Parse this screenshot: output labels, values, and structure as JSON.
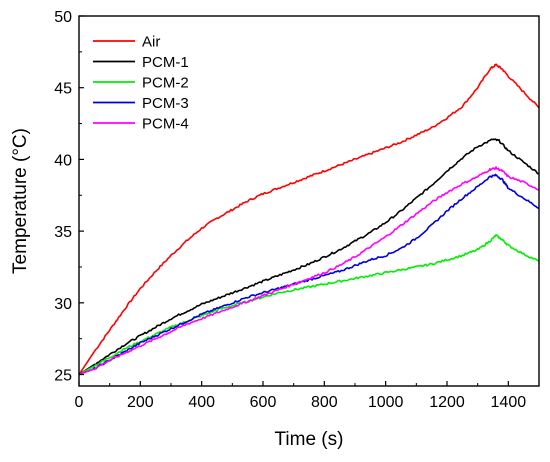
{
  "chart_data": {
    "type": "line",
    "title": "",
    "xlabel": "Time (s)",
    "ylabel": "Temperature (°C)",
    "xlim": [
      0,
      1500
    ],
    "ylim": [
      24.2,
      50
    ],
    "xticks": [
      0,
      200,
      400,
      600,
      800,
      1000,
      1200,
      1400
    ],
    "yticks": [
      25,
      30,
      35,
      40,
      45,
      50
    ],
    "grid": false,
    "legend_position": "top-left",
    "series": [
      {
        "name": "Air",
        "color": "#ff0000",
        "x": [
          0,
          50,
          100,
          150,
          200,
          250,
          300,
          350,
          400,
          450,
          500,
          550,
          600,
          650,
          700,
          750,
          800,
          850,
          900,
          950,
          1000,
          1050,
          1100,
          1150,
          1200,
          1250,
          1300,
          1340,
          1360,
          1380,
          1400,
          1450,
          1500
        ],
        "y": [
          25.0,
          26.6,
          28.1,
          29.6,
          31.0,
          32.2,
          33.3,
          34.3,
          35.2,
          35.9,
          36.5,
          37.1,
          37.6,
          38.0,
          38.4,
          38.8,
          39.2,
          39.6,
          40.0,
          40.4,
          40.8,
          41.2,
          41.7,
          42.2,
          42.9,
          43.7,
          45.0,
          46.3,
          46.6,
          46.3,
          45.8,
          44.7,
          43.6
        ]
      },
      {
        "name": "PCM-1",
        "color": "#000000",
        "x": [
          0,
          50,
          100,
          150,
          200,
          250,
          300,
          350,
          400,
          450,
          500,
          550,
          600,
          650,
          700,
          750,
          800,
          850,
          900,
          950,
          1000,
          1050,
          1100,
          1150,
          1200,
          1250,
          1300,
          1350,
          1370,
          1400,
          1450,
          1500
        ],
        "y": [
          25.0,
          25.7,
          26.4,
          27.1,
          27.7,
          28.3,
          28.9,
          29.4,
          29.9,
          30.3,
          30.7,
          31.1,
          31.5,
          31.9,
          32.3,
          32.7,
          33.2,
          33.7,
          34.3,
          34.9,
          35.6,
          36.4,
          37.3,
          38.2,
          39.2,
          40.1,
          40.9,
          41.4,
          41.3,
          40.6,
          39.8,
          39.0
        ]
      },
      {
        "name": "PCM-2",
        "color": "#00ee00",
        "x": [
          0,
          50,
          100,
          150,
          200,
          250,
          300,
          350,
          400,
          450,
          500,
          550,
          600,
          650,
          700,
          750,
          800,
          850,
          900,
          950,
          1000,
          1050,
          1100,
          1150,
          1200,
          1250,
          1300,
          1340,
          1360,
          1380,
          1400,
          1450,
          1500
        ],
        "y": [
          25.0,
          25.6,
          26.2,
          26.8,
          27.3,
          27.8,
          28.3,
          28.7,
          29.1,
          29.5,
          29.8,
          30.1,
          30.4,
          30.7,
          30.9,
          31.1,
          31.3,
          31.5,
          31.7,
          31.9,
          32.1,
          32.3,
          32.5,
          32.7,
          33.0,
          33.3,
          33.7,
          34.3,
          34.7,
          34.4,
          34.0,
          33.4,
          32.9
        ]
      },
      {
        "name": "PCM-3",
        "color": "#0000dd",
        "x": [
          0,
          50,
          100,
          150,
          200,
          250,
          300,
          350,
          400,
          450,
          500,
          550,
          600,
          650,
          700,
          750,
          800,
          850,
          900,
          950,
          1000,
          1050,
          1100,
          1150,
          1200,
          1250,
          1300,
          1340,
          1360,
          1380,
          1400,
          1450,
          1500
        ],
        "y": [
          25.0,
          25.4,
          26.0,
          26.6,
          27.2,
          27.7,
          28.2,
          28.7,
          29.2,
          29.6,
          30.0,
          30.4,
          30.7,
          31.0,
          31.3,
          31.6,
          31.9,
          32.2,
          32.6,
          33.0,
          33.3,
          33.8,
          34.5,
          35.4,
          36.4,
          37.3,
          38.1,
          38.8,
          38.9,
          38.6,
          38.0,
          37.3,
          36.6
        ]
      },
      {
        "name": "PCM-4",
        "color": "#ff00ff",
        "x": [
          0,
          50,
          100,
          150,
          200,
          250,
          300,
          350,
          400,
          450,
          500,
          550,
          600,
          650,
          700,
          750,
          800,
          850,
          900,
          950,
          1000,
          1050,
          1100,
          1150,
          1200,
          1250,
          1300,
          1340,
          1360,
          1380,
          1400,
          1450,
          1500
        ],
        "y": [
          25.0,
          25.4,
          26.0,
          26.5,
          27.0,
          27.5,
          28.0,
          28.5,
          28.9,
          29.3,
          29.7,
          30.1,
          30.5,
          30.9,
          31.3,
          31.7,
          32.1,
          32.6,
          33.2,
          33.9,
          34.6,
          35.4,
          36.2,
          37.0,
          37.7,
          38.3,
          38.8,
          39.3,
          39.4,
          39.2,
          38.8,
          38.4,
          37.9
        ]
      }
    ]
  }
}
